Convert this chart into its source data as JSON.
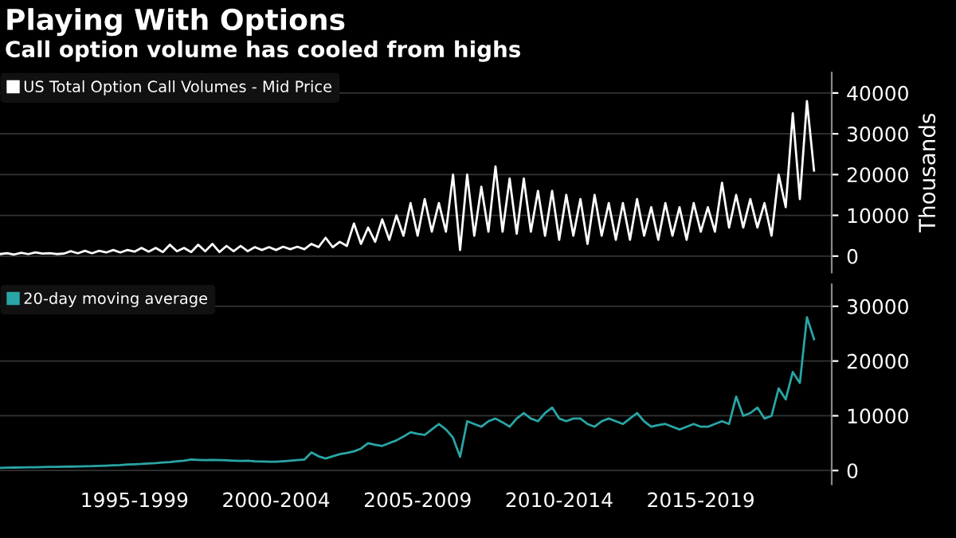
{
  "chart_data": [
    {
      "type": "line",
      "title": "Playing With Options",
      "subtitle": "Call option volume has cooled from highs",
      "ylabel": "Thousands",
      "categories": [
        null,
        null,
        null,
        null,
        null,
        null,
        null,
        null,
        null,
        null,
        null,
        null,
        null,
        null,
        null,
        null,
        null,
        null,
        null,
        null,
        null,
        null,
        null,
        null,
        null,
        null,
        null,
        null,
        null,
        null,
        null,
        null,
        null,
        null,
        null,
        null,
        null,
        null,
        null,
        null,
        null,
        null,
        null,
        null,
        null,
        null,
        null,
        null,
        null,
        null,
        null,
        null,
        null,
        null,
        null,
        null,
        null,
        null,
        null,
        null,
        null,
        null,
        null,
        null,
        null,
        null,
        null,
        null,
        null,
        null,
        null,
        null,
        null,
        null,
        null,
        null,
        null,
        null,
        null,
        null,
        null,
        null,
        null,
        null,
        null,
        null,
        null,
        null,
        null,
        null,
        null,
        null,
        null,
        null,
        null,
        null,
        null,
        null,
        null,
        null,
        null,
        null,
        null,
        null,
        null,
        null,
        null,
        null,
        null,
        null,
        null,
        null,
        null,
        null,
        null,
        null
      ],
      "ylim": [
        -4000,
        45000
      ],
      "yticks": [
        0,
        10000,
        20000,
        30000,
        40000
      ],
      "tick_labels": "y",
      "grid": "y",
      "legend": "top left",
      "series": [
        {
          "name": "US Total Option Call Volumes - Mid Price",
          "color": "#ffffff",
          "values": [
            500,
            700,
            400,
            800,
            500,
            900,
            600,
            700,
            500,
            600,
            1200,
            700,
            1300,
            700,
            1300,
            900,
            1500,
            900,
            1500,
            1100,
            2000,
            1100,
            2000,
            1000,
            2800,
            1200,
            2000,
            1000,
            2800,
            1200,
            3000,
            1000,
            2500,
            1200,
            2500,
            1200,
            2200,
            1500,
            2200,
            1500,
            2300,
            1700,
            2300,
            1700,
            3000,
            2200,
            4500,
            2200,
            3500,
            2500,
            8000,
            3000,
            7000,
            3500,
            9000,
            4000,
            10000,
            5000,
            13000,
            5000,
            14000,
            6000,
            13000,
            6000,
            20000,
            1500,
            20000,
            5000,
            17000,
            6000,
            22000,
            6000,
            19000,
            5500,
            19000,
            6000,
            16000,
            5000,
            16000,
            4000,
            15000,
            5000,
            14000,
            3000,
            15000,
            5000,
            13000,
            4000,
            13000,
            4000,
            14000,
            5000,
            12000,
            4000,
            13000,
            5000,
            12000,
            4000,
            13000,
            6000,
            12000,
            6000,
            18000,
            7000,
            15000,
            7000,
            14000,
            7000,
            13000,
            5000,
            20000,
            12000,
            35000,
            14000,
            38000,
            21000
          ]
        }
      ]
    },
    {
      "type": "line",
      "categories": [
        null,
        null,
        null,
        null,
        null,
        null,
        null,
        null,
        null,
        null,
        null,
        null,
        null,
        null,
        null,
        null,
        null,
        null,
        null,
        "1995-1999",
        null,
        null,
        null,
        null,
        null,
        null,
        null,
        null,
        null,
        null,
        null,
        null,
        null,
        null,
        null,
        null,
        null,
        null,
        null,
        "2000-2004",
        null,
        null,
        null,
        null,
        null,
        null,
        null,
        null,
        null,
        null,
        null,
        null,
        null,
        null,
        null,
        null,
        null,
        null,
        null,
        "2005-2009",
        null,
        null,
        null,
        null,
        null,
        null,
        null,
        null,
        null,
        null,
        null,
        null,
        null,
        null,
        null,
        null,
        null,
        null,
        null,
        "2010-2014",
        null,
        null,
        null,
        null,
        null,
        null,
        null,
        null,
        null,
        null,
        null,
        null,
        null,
        null,
        null,
        null,
        null,
        null,
        null,
        "2015-2019",
        null,
        null,
        null,
        null,
        null,
        null,
        null,
        null,
        null,
        null,
        null,
        null,
        null,
        null,
        null,
        null
      ],
      "ylim": [
        -2500,
        34000
      ],
      "yticks": [
        0,
        10000,
        20000,
        30000
      ],
      "grid": "y",
      "legend": "top left",
      "series": [
        {
          "name": "20-day moving average",
          "color": "#2aa5a5",
          "values": [
            500,
            520,
            540,
            560,
            580,
            600,
            620,
            650,
            680,
            700,
            720,
            750,
            780,
            800,
            850,
            900,
            950,
            1000,
            1100,
            1150,
            1200,
            1300,
            1350,
            1450,
            1550,
            1700,
            1800,
            2000,
            1950,
            1900,
            1950,
            1900,
            1850,
            1800,
            1750,
            1800,
            1700,
            1650,
            1600,
            1600,
            1700,
            1800,
            1900,
            2000,
            3300,
            2600,
            2200,
            2600,
            3000,
            3200,
            3500,
            4000,
            5000,
            4700,
            4500,
            5000,
            5500,
            6200,
            7000,
            6700,
            6500,
            7500,
            8500,
            7500,
            6000,
            2500,
            9000,
            8500,
            8000,
            9000,
            9500,
            8800,
            8000,
            9500,
            10500,
            9500,
            9000,
            10500,
            11500,
            9500,
            9000,
            9500,
            9500,
            8500,
            8000,
            9000,
            9500,
            9000,
            8500,
            9500,
            10500,
            9000,
            8000,
            8300,
            8500,
            8000,
            7500,
            8000,
            8500,
            8000,
            8000,
            8500,
            9000,
            8500,
            13500,
            10000,
            10500,
            11500,
            9500,
            10000,
            15000,
            13000,
            18000,
            16000,
            28000,
            24000
          ]
        }
      ]
    }
  ]
}
